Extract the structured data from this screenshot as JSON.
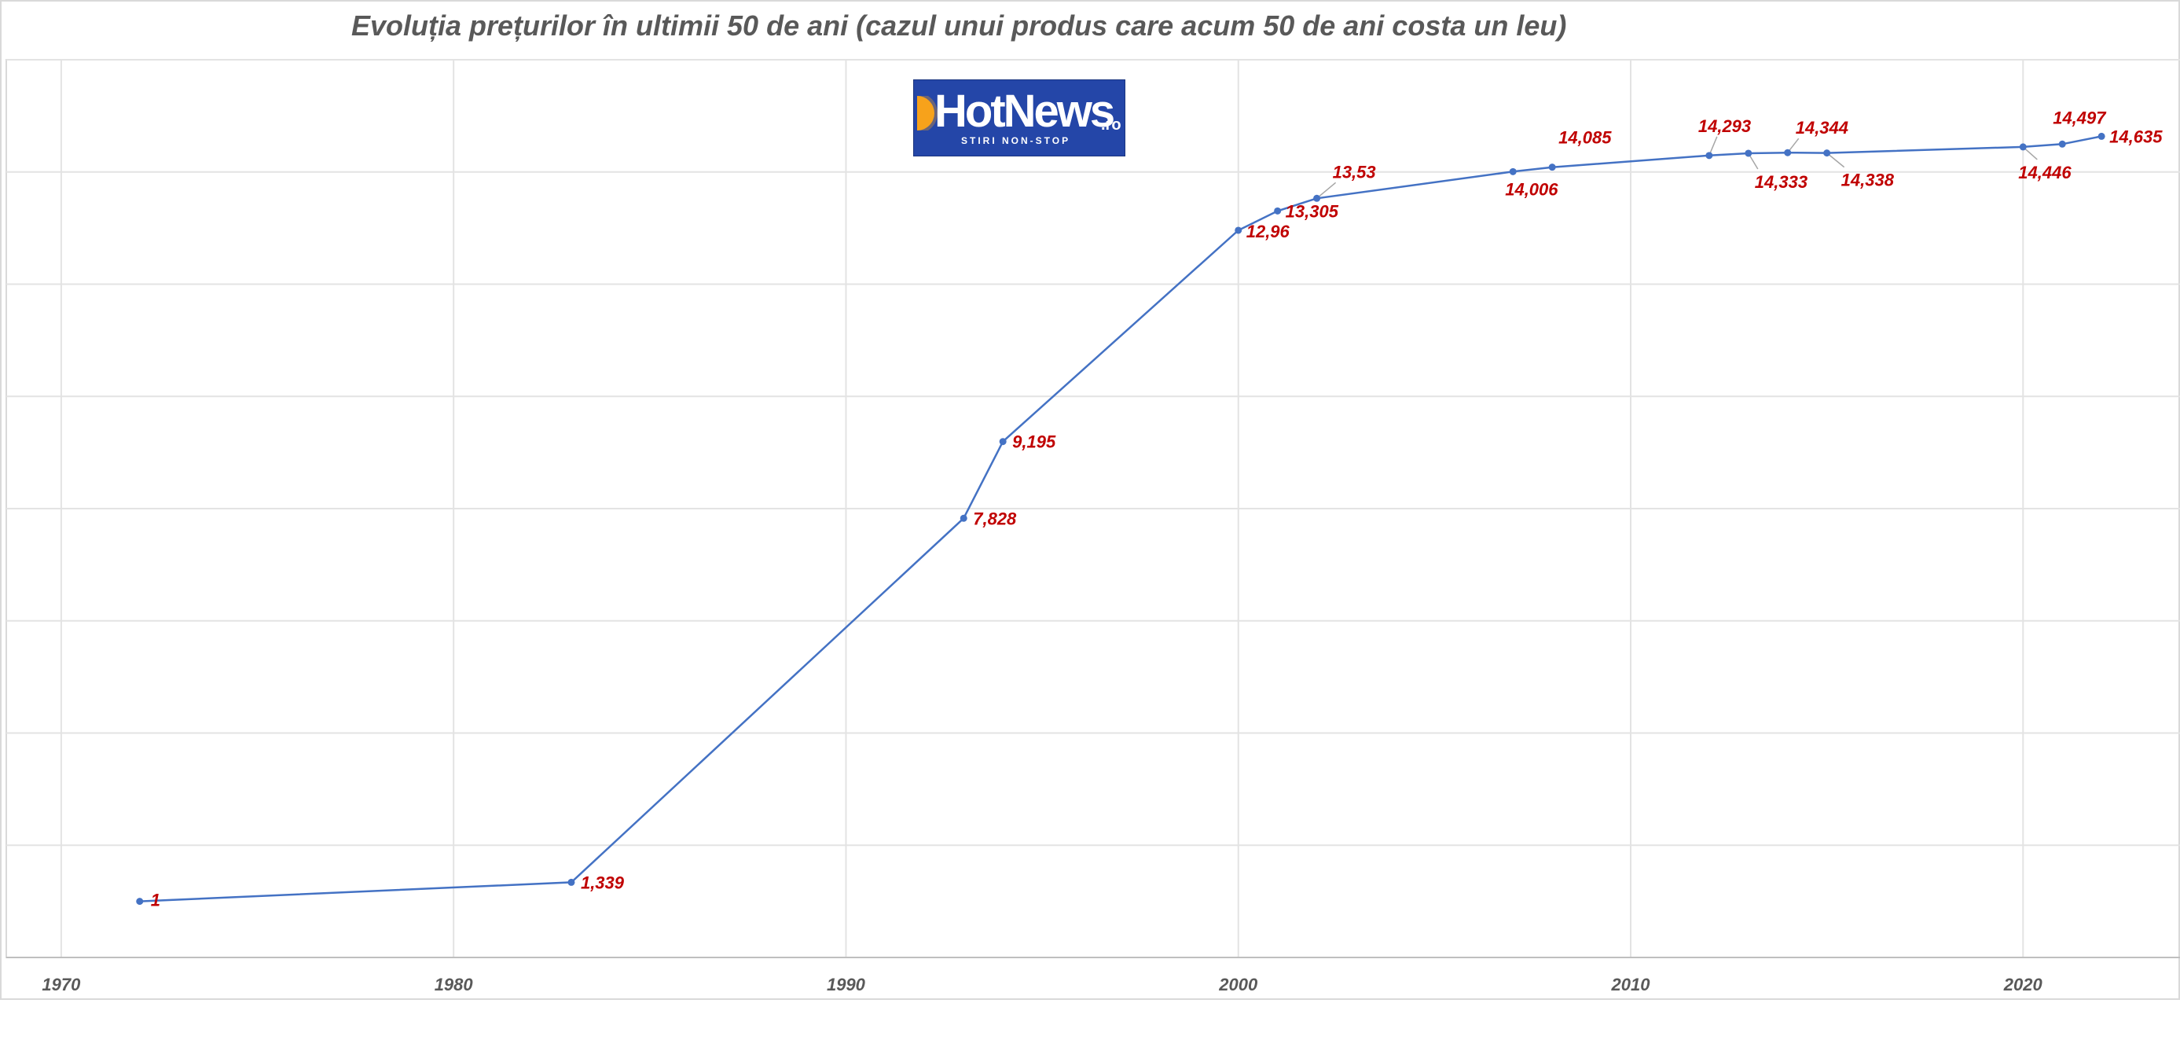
{
  "chart_data": {
    "type": "line",
    "title": "Evoluția prețurilor în ultimii 50 de ani (cazul unui produs care acum 50 de ani costa un leu)",
    "xlabel": "",
    "ylabel": "",
    "xlim": [
      1968.6,
      2024
    ],
    "ylim": [
      0,
      16
    ],
    "x_ticks": [
      1970,
      1980,
      1990,
      2000,
      2010,
      2020
    ],
    "y_gridlines": [
      0,
      2,
      4,
      6,
      8,
      10,
      12,
      14,
      16
    ],
    "grid": true,
    "legend": "none",
    "series": [
      {
        "color": "#4472c4",
        "points": [
          {
            "x": 1972,
            "y": 1,
            "label": "1"
          },
          {
            "x": 1983,
            "y": 1.339,
            "label": "1,339"
          },
          {
            "x": 1993,
            "y": 7.828,
            "label": "7,828"
          },
          {
            "x": 1994,
            "y": 9.195,
            "label": "9,195"
          },
          {
            "x": 2000,
            "y": 12.96,
            "label": "12,96"
          },
          {
            "x": 2001,
            "y": 13.305,
            "label": "13,305"
          },
          {
            "x": 2002,
            "y": 13.53,
            "label": "13,53"
          },
          {
            "x": 2007,
            "y": 14.006,
            "label": "14,006"
          },
          {
            "x": 2008,
            "y": 14.085,
            "label": "14,085"
          },
          {
            "x": 2012,
            "y": 14.293,
            "label": "14,293"
          },
          {
            "x": 2013,
            "y": 14.333,
            "label": "14,333"
          },
          {
            "x": 2014,
            "y": 14.344,
            "label": "14,344"
          },
          {
            "x": 2015,
            "y": 14.338,
            "label": "14,338"
          },
          {
            "x": 2020,
            "y": 14.446,
            "label": "14,446"
          },
          {
            "x": 2021,
            "y": 14.497,
            "label": "14,497"
          },
          {
            "x": 2022,
            "y": 14.635,
            "label": "14,635"
          }
        ]
      }
    ],
    "label_color": "#c00000"
  },
  "logo": {
    "brand": "HotNews",
    "suffix": ".ro",
    "tagline": "STIRI NON-STOP",
    "bg_color": "#2446a8",
    "icon": "sun-icon"
  }
}
